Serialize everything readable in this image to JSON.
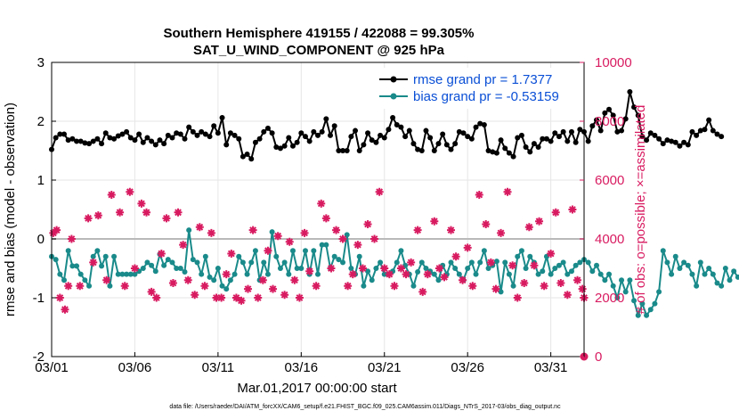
{
  "chart_data": {
    "type": "line",
    "title_line1": "Southern Hemisphere 419155 / 422088 = 99.305%",
    "title_line2": "SAT_U_WIND_COMPONENT @ 925 hPa",
    "xlabel": "Mar.01,2017 00:00:00 start",
    "ylabel": "rmse and bias (model - observation)",
    "ylabel_right": "# of obs: o=possible; ×=assimilated",
    "footnote": "data file: /Users/raeder/DAI/ATM_forcXX/CAM6_setup/f.e21.FHIST_BGC.f09_025.CAM6assim.011/Diags_NTrS_2017-03/obs_diag_output.nc",
    "xlim": [
      0,
      32
    ],
    "ylim": [
      -2,
      3
    ],
    "ylim_right": [
      0,
      10000
    ],
    "x_ticks": [
      {
        "x": 0,
        "label": "03/01"
      },
      {
        "x": 5,
        "label": "03/06"
      },
      {
        "x": 10,
        "label": "03/11"
      },
      {
        "x": 15,
        "label": "03/16"
      },
      {
        "x": 20,
        "label": "03/21"
      },
      {
        "x": 25,
        "label": "03/26"
      },
      {
        "x": 30,
        "label": "03/31"
      }
    ],
    "y_ticks": [
      {
        "v": -2,
        "label": "-2"
      },
      {
        "v": -1,
        "label": "-1"
      },
      {
        "v": 0,
        "label": "0"
      },
      {
        "v": 1,
        "label": "1"
      },
      {
        "v": 2,
        "label": "2"
      },
      {
        "v": 3,
        "label": "3"
      }
    ],
    "y_ticks_right": [
      {
        "v": 0,
        "label": "0"
      },
      {
        "v": 2000,
        "label": "2000"
      },
      {
        "v": 4000,
        "label": "4000"
      },
      {
        "v": 6000,
        "label": "6000"
      },
      {
        "v": 8000,
        "label": "8000"
      },
      {
        "v": 10000,
        "label": "10000"
      }
    ],
    "legend": [
      {
        "name": "rmse grand pr = 1.7377",
        "color": "#000000"
      },
      {
        "name": "bias grand pr = -0.53159",
        "color": "#1a8a8a"
      }
    ],
    "series": [
      {
        "name": "rmse",
        "color": "#000000",
        "x0": 0.0,
        "dx": 0.25,
        "values": [
          1.52,
          1.72,
          1.78,
          1.78,
          1.68,
          1.7,
          1.66,
          1.66,
          1.63,
          1.62,
          1.66,
          1.7,
          1.62,
          1.8,
          1.72,
          1.7,
          1.75,
          1.78,
          1.82,
          1.72,
          1.68,
          1.78,
          1.64,
          1.72,
          1.66,
          1.6,
          1.68,
          1.62,
          1.76,
          1.72,
          1.8,
          1.78,
          1.7,
          1.9,
          1.82,
          1.76,
          1.82,
          1.78,
          1.74,
          1.92,
          1.8,
          2.06,
          1.6,
          1.8,
          1.76,
          1.7,
          1.4,
          1.44,
          1.36,
          1.64,
          1.7,
          1.82,
          1.88,
          1.8,
          1.56,
          1.54,
          1.58,
          1.72,
          1.58,
          1.64,
          1.8,
          1.74,
          1.66,
          1.82,
          1.76,
          1.82,
          2.04,
          1.76,
          1.92,
          1.5,
          1.5,
          1.5,
          1.74,
          1.84,
          1.5,
          1.6,
          1.8,
          1.68,
          1.64,
          1.76,
          1.72,
          1.86,
          2.06,
          1.94,
          1.9,
          1.74,
          1.84,
          1.62,
          1.52,
          1.5,
          1.84,
          1.72,
          1.5,
          1.62,
          1.78,
          1.6,
          1.52,
          1.62,
          1.82,
          1.8,
          1.74,
          1.7,
          1.9,
          1.96,
          1.94,
          1.5,
          1.48,
          1.46,
          1.68,
          1.54,
          1.46,
          1.4,
          1.72,
          1.76,
          1.56,
          1.48,
          1.62,
          1.56,
          1.7,
          1.7,
          1.66,
          1.8,
          1.74,
          1.82,
          1.66,
          1.82,
          1.64,
          1.86,
          1.82,
          1.66,
          1.92,
          2.02,
          1.84,
          2.14,
          2.2,
          2.1,
          1.82,
          1.84,
          2.04,
          2.5,
          2.24,
          2.1,
          1.74,
          1.68,
          1.8,
          1.76,
          1.7,
          1.62,
          1.68,
          1.66,
          1.64,
          1.58,
          1.64,
          1.6,
          1.82,
          1.76,
          1.84,
          1.86,
          2.02,
          1.84,
          1.78,
          1.74
        ]
      },
      {
        "name": "bias",
        "color": "#1a8a8a",
        "x0": 0.0,
        "dx": 0.25,
        "values": [
          -0.3,
          -0.35,
          -0.6,
          -0.7,
          -0.2,
          -0.46,
          -0.46,
          -0.6,
          -0.7,
          -0.8,
          -0.3,
          -0.2,
          -0.46,
          -0.3,
          -0.8,
          -0.3,
          -0.6,
          -0.6,
          -0.6,
          -0.6,
          -0.6,
          -0.55,
          -0.5,
          -0.4,
          -0.45,
          -0.55,
          -0.26,
          -0.45,
          -0.35,
          -0.4,
          -0.5,
          -0.5,
          -0.56,
          0.15,
          -0.35,
          -0.4,
          -0.6,
          -0.3,
          -0.65,
          -0.7,
          -0.5,
          -0.8,
          -0.85,
          -0.7,
          -0.6,
          -0.3,
          -0.4,
          -0.6,
          -0.4,
          -0.2,
          -0.7,
          -0.4,
          -0.6,
          0.12,
          -0.3,
          -0.5,
          -0.4,
          -0.6,
          -0.2,
          -0.5,
          -0.5,
          -0.2,
          -0.6,
          -0.2,
          -0.6,
          -0.1,
          -0.1,
          -0.5,
          -0.3,
          -0.35,
          -0.4,
          0.07,
          -0.5,
          -0.6,
          -0.3,
          -0.8,
          -0.55,
          -0.7,
          -0.5,
          -0.4,
          -0.6,
          -0.6,
          -0.55,
          -0.4,
          -0.2,
          -0.45,
          -0.6,
          -0.8,
          -0.56,
          -0.4,
          -0.5,
          -0.55,
          -0.6,
          -0.7,
          -0.45,
          -0.6,
          -0.4,
          -0.5,
          -0.6,
          -0.7,
          -0.5,
          -0.4,
          -0.6,
          -0.4,
          -0.2,
          -0.5,
          -0.45,
          -0.38,
          -0.9,
          -0.4,
          -0.6,
          -0.8,
          -0.3,
          -0.2,
          -0.5,
          -0.3,
          -0.4,
          -0.6,
          -0.55,
          -0.3,
          -0.6,
          -0.5,
          -0.45,
          -0.4,
          -0.6,
          -0.55,
          -0.45,
          -0.4,
          -0.35,
          -0.4,
          -0.55,
          -0.45,
          -0.6,
          -0.7,
          -0.6,
          -0.8,
          -1.0,
          -0.7,
          -0.9,
          -0.7,
          -1.05,
          -1.3,
          -1.1,
          -1.3,
          -1.2,
          -1.1,
          -0.9,
          -0.2,
          -0.4,
          -0.6,
          -0.3,
          -0.5,
          -0.4,
          -0.45,
          -0.6,
          -0.8,
          -0.4,
          -0.6,
          -0.5,
          -0.6,
          -0.75,
          -0.8,
          -0.5,
          -0.7,
          -0.55,
          -0.65
        ]
      },
      {
        "name": "possible obs",
        "color": "#d81b60",
        "axis": "right",
        "points": [
          [
            0.1,
            4200
          ],
          [
            0.3,
            4300
          ],
          [
            0.5,
            2000
          ],
          [
            0.8,
            1600
          ],
          [
            1.0,
            2400
          ],
          [
            1.2,
            4000
          ],
          [
            1.7,
            2400
          ],
          [
            2.2,
            4700
          ],
          [
            2.5,
            3200
          ],
          [
            2.8,
            4800
          ],
          [
            3.3,
            2600
          ],
          [
            3.6,
            5500
          ],
          [
            4.1,
            4900
          ],
          [
            4.4,
            2400
          ],
          [
            4.7,
            5600
          ],
          [
            5.0,
            3000
          ],
          [
            5.4,
            5200
          ],
          [
            5.7,
            4900
          ],
          [
            6.0,
            2200
          ],
          [
            6.3,
            2000
          ],
          [
            6.6,
            3500
          ],
          [
            6.9,
            4700
          ],
          [
            7.3,
            2500
          ],
          [
            7.6,
            4900
          ],
          [
            7.9,
            3800
          ],
          [
            8.2,
            2600
          ],
          [
            8.6,
            2100
          ],
          [
            8.9,
            4400
          ],
          [
            9.2,
            2400
          ],
          [
            9.6,
            4200
          ],
          [
            9.9,
            2000
          ],
          [
            10.2,
            2000
          ],
          [
            10.5,
            2800
          ],
          [
            10.8,
            3500
          ],
          [
            11.1,
            2000
          ],
          [
            11.4,
            1900
          ],
          [
            11.8,
            2300
          ],
          [
            12.1,
            4300
          ],
          [
            12.4,
            2000
          ],
          [
            12.7,
            2600
          ],
          [
            13.0,
            3600
          ],
          [
            13.3,
            2300
          ],
          [
            13.6,
            4100
          ],
          [
            14.0,
            2100
          ],
          [
            14.3,
            3900
          ],
          [
            14.6,
            2600
          ],
          [
            14.9,
            2000
          ],
          [
            15.2,
            4200
          ],
          [
            15.5,
            2900
          ],
          [
            15.9,
            2400
          ],
          [
            16.2,
            5200
          ],
          [
            16.5,
            4700
          ],
          [
            16.8,
            3000
          ],
          [
            17.1,
            4300
          ],
          [
            17.5,
            4000
          ],
          [
            17.8,
            2400
          ],
          [
            18.1,
            2800
          ],
          [
            18.4,
            3800
          ],
          [
            18.7,
            3000
          ],
          [
            19.0,
            4500
          ],
          [
            19.4,
            4000
          ],
          [
            19.7,
            5600
          ],
          [
            20.0,
            3000
          ],
          [
            20.3,
            2800
          ],
          [
            20.6,
            2400
          ],
          [
            21.0,
            3000
          ],
          [
            21.3,
            2800
          ],
          [
            21.6,
            3200
          ],
          [
            22.0,
            4300
          ],
          [
            22.3,
            2200
          ],
          [
            22.6,
            2800
          ],
          [
            23.0,
            4600
          ],
          [
            23.3,
            3000
          ],
          [
            23.6,
            2700
          ],
          [
            24.0,
            4300
          ],
          [
            24.3,
            3400
          ],
          [
            24.7,
            2600
          ],
          [
            25.0,
            3700
          ],
          [
            25.3,
            2400
          ],
          [
            25.7,
            5500
          ],
          [
            26.1,
            4500
          ],
          [
            26.4,
            3200
          ],
          [
            26.7,
            2300
          ],
          [
            27.0,
            4200
          ],
          [
            27.4,
            5600
          ],
          [
            27.7,
            3100
          ],
          [
            28.0,
            2000
          ],
          [
            28.4,
            2500
          ],
          [
            28.7,
            4400
          ],
          [
            29.0,
            3100
          ],
          [
            29.3,
            4600
          ],
          [
            29.6,
            2400
          ],
          [
            30.0,
            3500
          ],
          [
            30.3,
            4900
          ],
          [
            30.6,
            2500
          ],
          [
            31.0,
            2100
          ],
          [
            31.3,
            5000
          ],
          [
            31.6,
            2600
          ],
          [
            31.9,
            2300
          ],
          [
            32.0,
            2000
          ]
        ]
      },
      {
        "name": "assimilated obs",
        "color": "#d81b60",
        "axis": "right",
        "points": [
          [
            32.0,
            0
          ]
        ]
      }
    ]
  }
}
